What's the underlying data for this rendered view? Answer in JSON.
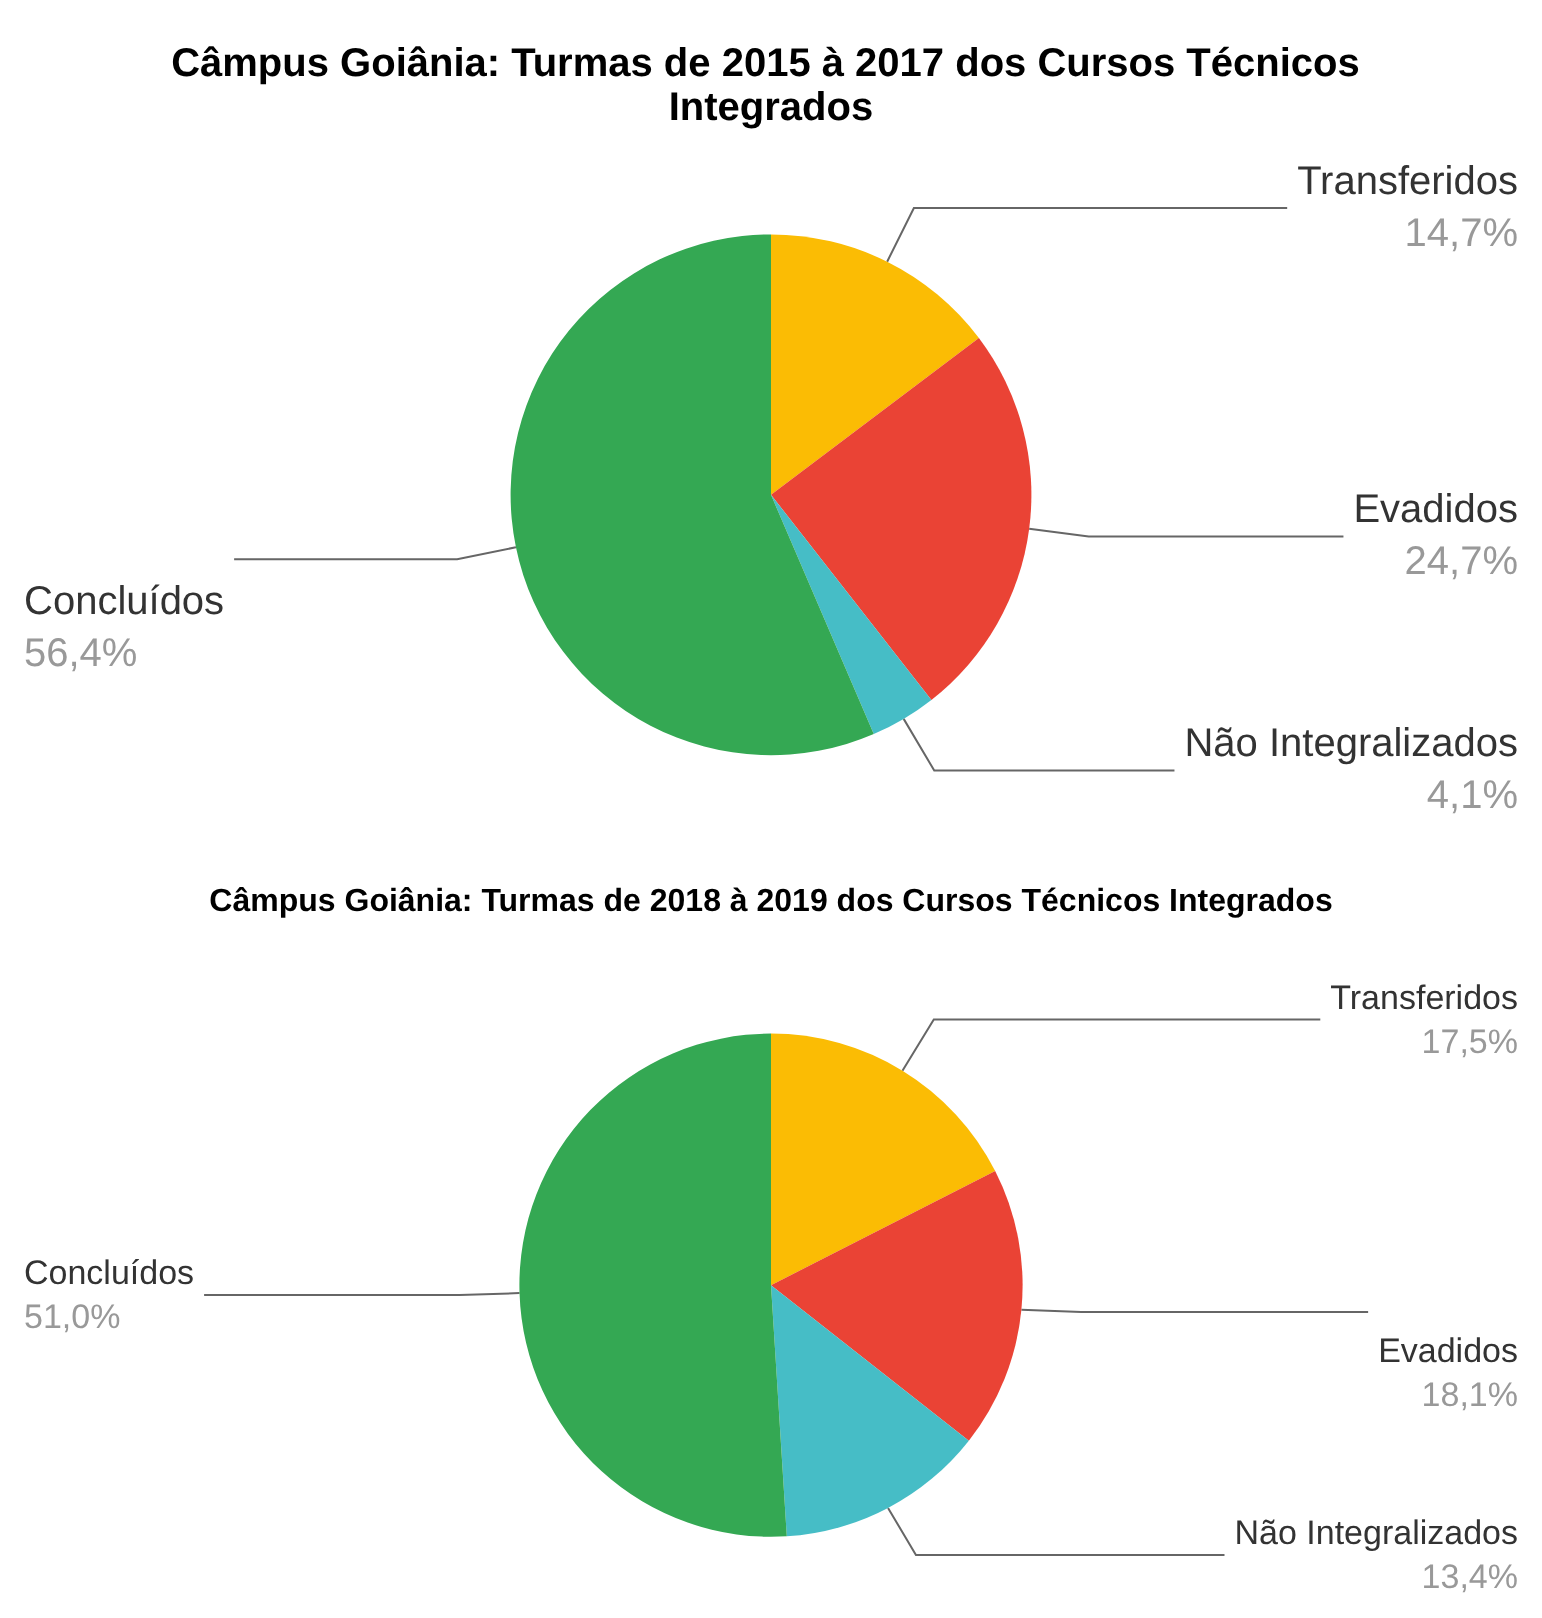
{
  "chart_data": [
    {
      "type": "pie",
      "title": "Câmpus Goiânia: Turmas de 2015 à 2017 dos Cursos Técnicos Integrados",
      "categories": [
        "Transferidos",
        "Evadidos",
        "Não Integralizados",
        "Concluídos"
      ],
      "values": [
        14.7,
        24.7,
        4.1,
        56.4
      ],
      "colors": [
        "#fbbc04",
        "#ea4335",
        "#46bdc6",
        "#34a853"
      ],
      "value_labels": [
        "14,7%",
        "24,7%",
        "4,1%",
        "56,4%"
      ],
      "legend": false
    },
    {
      "type": "pie",
      "title": "Câmpus Goiânia: Turmas de 2018 à 2019 dos Cursos Técnicos Integrados",
      "categories": [
        "Transferidos",
        "Evadidos",
        "Não Integralizados",
        "Concluídos"
      ],
      "values": [
        17.5,
        18.1,
        13.4,
        51.0
      ],
      "colors": [
        "#fbbc04",
        "#ea4335",
        "#46bdc6",
        "#34a853"
      ],
      "value_labels": [
        "17,5%",
        "18,1%",
        "13,4%",
        "51,0%"
      ],
      "legend": false
    }
  ]
}
